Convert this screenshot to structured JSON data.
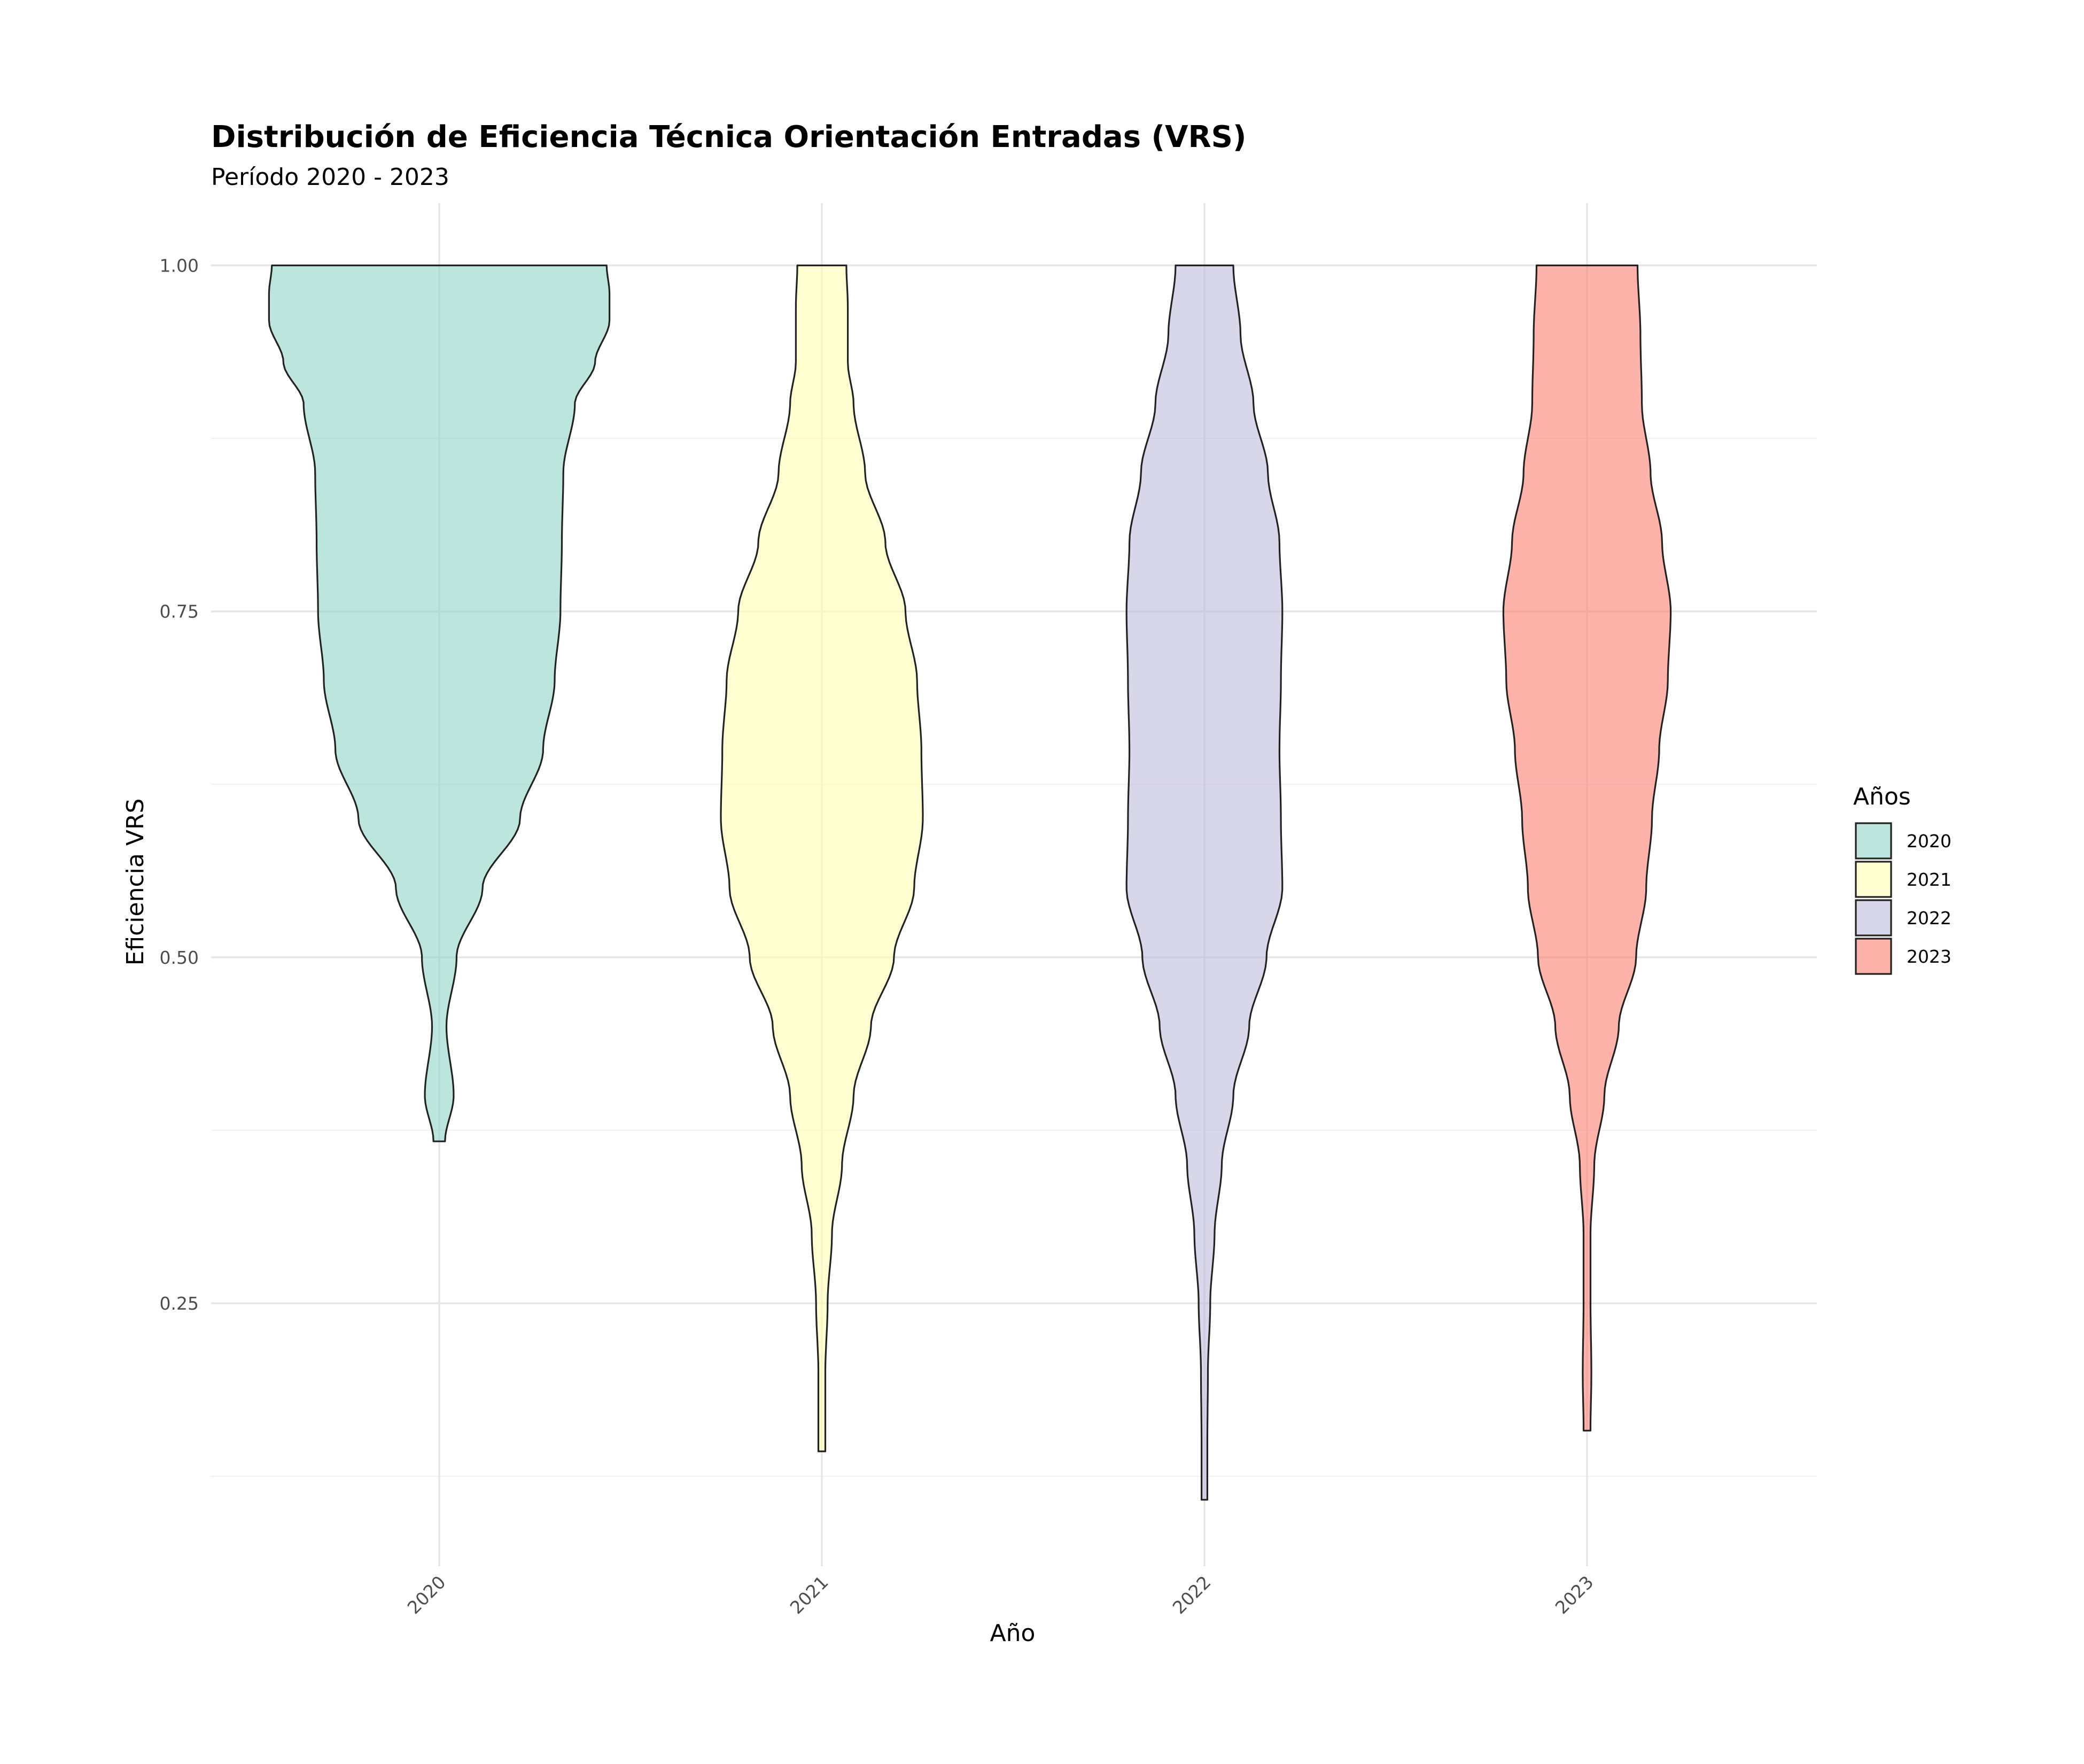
{
  "chart_data": {
    "type": "violin",
    "title": "Distribución de Eficiencia Técnica Orientación Entradas (VRS)",
    "subtitle": "Período 2020 - 2023",
    "xlabel": "Año",
    "ylabel": "Eficiencia VRS",
    "categories": [
      "2020",
      "2021",
      "2022",
      "2023"
    ],
    "ylim": [
      0.06,
      1.045
    ],
    "y_ticks": [
      0.25,
      0.5,
      0.75,
      1.0
    ],
    "y_tick_labels": [
      "0.25",
      "0.50",
      "0.75",
      "1.00"
    ],
    "grid": true,
    "legend": {
      "title": "Años",
      "position": "right",
      "entries": [
        "2020",
        "2021",
        "2022",
        "2023"
      ]
    },
    "colors": {
      "2020": "#8DD3C7",
      "2021": "#FFFFB3",
      "2022": "#BEBADA",
      "2023": "#FB8072"
    },
    "series": [
      {
        "name": "2020",
        "min": 0.367,
        "max": 1.0,
        "density_profile": [
          [
            0.367,
            0.02
          ],
          [
            0.4,
            0.05
          ],
          [
            0.45,
            0.025
          ],
          [
            0.5,
            0.06
          ],
          [
            0.55,
            0.15
          ],
          [
            0.6,
            0.28
          ],
          [
            0.65,
            0.36
          ],
          [
            0.7,
            0.4
          ],
          [
            0.75,
            0.42
          ],
          [
            0.8,
            0.425
          ],
          [
            0.85,
            0.43
          ],
          [
            0.9,
            0.47
          ],
          [
            0.93,
            0.54
          ],
          [
            0.96,
            0.59
          ],
          [
            0.98,
            0.59
          ],
          [
            1.0,
            0.58
          ]
        ]
      },
      {
        "name": "2021",
        "min": 0.143,
        "max": 1.0,
        "density_profile": [
          [
            0.143,
            0.012
          ],
          [
            0.2,
            0.012
          ],
          [
            0.25,
            0.02
          ],
          [
            0.3,
            0.035
          ],
          [
            0.35,
            0.07
          ],
          [
            0.4,
            0.11
          ],
          [
            0.45,
            0.17
          ],
          [
            0.5,
            0.25
          ],
          [
            0.55,
            0.32
          ],
          [
            0.6,
            0.35
          ],
          [
            0.65,
            0.345
          ],
          [
            0.7,
            0.33
          ],
          [
            0.75,
            0.29
          ],
          [
            0.8,
            0.22
          ],
          [
            0.85,
            0.15
          ],
          [
            0.9,
            0.11
          ],
          [
            0.93,
            0.09
          ],
          [
            0.97,
            0.09
          ],
          [
            1.0,
            0.085
          ]
        ]
      },
      {
        "name": "2022",
        "min": 0.108,
        "max": 1.0,
        "density_profile": [
          [
            0.108,
            0.01
          ],
          [
            0.15,
            0.01
          ],
          [
            0.2,
            0.012
          ],
          [
            0.25,
            0.02
          ],
          [
            0.3,
            0.035
          ],
          [
            0.35,
            0.06
          ],
          [
            0.4,
            0.1
          ],
          [
            0.45,
            0.155
          ],
          [
            0.5,
            0.215
          ],
          [
            0.55,
            0.27
          ],
          [
            0.6,
            0.265
          ],
          [
            0.65,
            0.26
          ],
          [
            0.7,
            0.265
          ],
          [
            0.75,
            0.27
          ],
          [
            0.8,
            0.26
          ],
          [
            0.85,
            0.22
          ],
          [
            0.9,
            0.17
          ],
          [
            0.95,
            0.125
          ],
          [
            1.0,
            0.1
          ]
        ]
      },
      {
        "name": "2023",
        "min": 0.158,
        "max": 1.0,
        "density_profile": [
          [
            0.158,
            0.012
          ],
          [
            0.2,
            0.015
          ],
          [
            0.25,
            0.012
          ],
          [
            0.3,
            0.012
          ],
          [
            0.35,
            0.025
          ],
          [
            0.4,
            0.06
          ],
          [
            0.45,
            0.11
          ],
          [
            0.5,
            0.17
          ],
          [
            0.55,
            0.205
          ],
          [
            0.6,
            0.225
          ],
          [
            0.65,
            0.25
          ],
          [
            0.7,
            0.28
          ],
          [
            0.75,
            0.29
          ],
          [
            0.8,
            0.26
          ],
          [
            0.85,
            0.22
          ],
          [
            0.9,
            0.19
          ],
          [
            0.95,
            0.185
          ],
          [
            1.0,
            0.175
          ]
        ]
      }
    ]
  }
}
